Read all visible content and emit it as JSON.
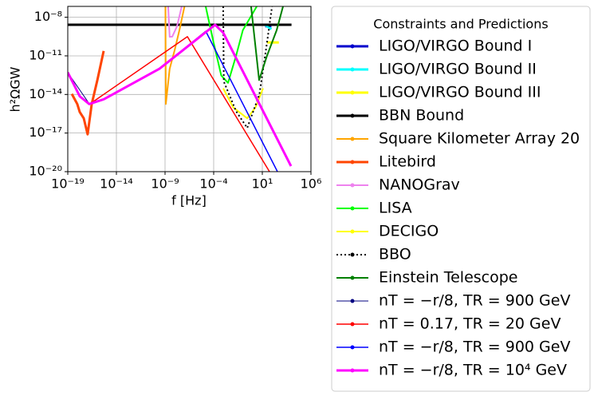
{
  "chart_data": {
    "type": "line",
    "xlabel": "f [Hz]",
    "ylabel": "h²ΩGW",
    "xscale": "log",
    "yscale": "log",
    "grid": true,
    "xlim": [
      1e-19,
      1000000.0
    ],
    "ylim": [
      1e-20,
      7e-08
    ],
    "xticks": [
      {
        "value": 1e-19,
        "label": "10⁻¹⁹"
      },
      {
        "value": 1e-14,
        "label": "10⁻¹⁴"
      },
      {
        "value": 1e-09,
        "label": "10⁻⁹"
      },
      {
        "value": 0.0001,
        "label": "10⁻⁴"
      },
      {
        "value": 10,
        "label": "10¹"
      },
      {
        "value": 1000000.0,
        "label": "10⁶"
      }
    ],
    "yticks": [
      {
        "value": 1e-20,
        "label": "10⁻²⁰"
      },
      {
        "value": 1e-17,
        "label": "10⁻¹⁷"
      },
      {
        "value": 1e-14,
        "label": "10⁻¹⁴"
      },
      {
        "value": 1e-11,
        "label": "10⁻¹¹"
      },
      {
        "value": 1e-08,
        "label": "10⁻⁸"
      }
    ],
    "legend_title": "Constraints and Predictions",
    "legend_position": "outside right",
    "series": [
      {
        "name": "LIGO/VIRGO Bound I",
        "color": "#0000cc",
        "linewidth": 3,
        "x": [
          20,
          86
        ],
        "values": [
          2e-09,
          2e-09
        ]
      },
      {
        "name": "LIGO/VIRGO Bound II",
        "color": "#00ffff",
        "linewidth": 3,
        "x": [
          20,
          86
        ],
        "values": [
          2.5e-09,
          1.2e-09
        ]
      },
      {
        "name": "LIGO/VIRGO Bound III",
        "color": "#ffff00",
        "linewidth": 3,
        "x": [
          30,
          500
        ],
        "values": [
          1.1e-10,
          1.1e-10
        ]
      },
      {
        "name": "BBN Bound",
        "color": "#000000",
        "linewidth": 3,
        "x": [
          1e-19,
          10000.0
        ],
        "values": [
          2.6e-09,
          2.6e-09
        ]
      },
      {
        "name": "Square Kilometer Array 20",
        "color": "#ffa500",
        "linewidth": 2,
        "x": [
          1.1e-09,
          1.2e-09,
          3e-09,
          1e-08,
          3e-08,
          1e-07
        ],
        "values": [
          7e-08,
          1.8e-15,
          1e-12,
          3e-11,
          1e-09,
          7e-08
        ]
      },
      {
        "name": "Litebird",
        "color": "#ff4500",
        "linewidth": 3,
        "x": [
          2.6e-19,
          9.5e-19,
          1.7e-18,
          4.4e-18,
          1.1e-17,
          2.9e-17,
          1.1e-16,
          4.9e-16
        ],
        "values": [
          1.1e-14,
          1.8e-15,
          4.3e-16,
          1.4e-16,
          8e-18,
          1.8e-15,
          1.3e-13,
          2.4e-11
        ]
      },
      {
        "name": "NANOGrav",
        "color": "#ee82ee",
        "linewidth": 2,
        "x": [
          2.1e-09,
          3e-09,
          5.5e-09,
          1.7e-08,
          5.2e-08
        ],
        "values": [
          7e-08,
          3e-10,
          3.1e-10,
          2e-09,
          7e-08
        ]
      },
      {
        "name": "LISA",
        "color": "#00ff00",
        "linewidth": 2,
        "x": [
          1.5e-05,
          0.0001,
          0.0006,
          0.003,
          0.02,
          0.1,
          2.7
        ],
        "values": [
          7e-08,
          1e-10,
          3e-13,
          8e-14,
          1e-11,
          1e-09,
          7e-08
        ]
      },
      {
        "name": "DECIGO",
        "color": "#ffff00",
        "linewidth": 2,
        "x": [
          0.00095,
          0.01,
          0.28,
          2,
          12
        ],
        "values": [
          3e-14,
          1e-15,
          1.4e-16,
          1e-15,
          3e-14
        ]
      },
      {
        "name": "BBO",
        "color": "#000000",
        "linewidth": 2,
        "linestyle": "dotted",
        "x": [
          0.00095,
          0.0011,
          0.02,
          0.28,
          5,
          30,
          100
        ],
        "values": [
          7e-08,
          1e-13,
          5e-16,
          2.5e-17,
          1e-14,
          1e-10,
          7e-08
        ]
      },
      {
        "name": "Einstein Telescope",
        "color": "#008000",
        "linewidth": 2,
        "x": [
          0.7,
          4.7,
          30,
          300,
          1350
        ],
        "values": [
          7e-08,
          1.3e-13,
          1e-11,
          1e-09,
          7e-08
        ]
      },
      {
        "name": "nT = −r/8, TR = 900 GeV",
        "color": "#000080",
        "linewidth": 1,
        "x": [
          1e-19,
          1.7e-17,
          4.9e-16,
          2.7e-10,
          1.5e-05
        ],
        "values": [
          5e-13,
          1.8e-15,
          4e-15,
          1e-12,
          8.5e-10
        ]
      },
      {
        "name": "nT = 0.17, TR = 20 GeV",
        "color": "#ff0000",
        "linewidth": 1.5,
        "x": [
          2.9e-17,
          2e-07,
          55
        ],
        "values": [
          2.3e-15,
          3.1e-10,
          1e-20
        ]
      },
      {
        "name": "nT = −r/8, TR = 900 GeV",
        "color": "#0000ff",
        "linewidth": 1.5,
        "x": [
          1.5e-05,
          360
        ],
        "values": [
          8.5e-10,
          1e-20
        ]
      },
      {
        "name": "nT = −r/8, TR = 10⁴ GeV",
        "color": "#ff00ff",
        "linewidth": 3,
        "x": [
          1e-19,
          1.7e-18,
          1.6e-17,
          4.9e-16,
          2.7e-10,
          0.00014,
          0.00095,
          8900
        ],
        "values": [
          5.2e-13,
          7.2e-15,
          1.8e-15,
          4.2e-15,
          1e-12,
          2.6e-09,
          6.3e-10,
          2.7e-20
        ]
      }
    ]
  }
}
